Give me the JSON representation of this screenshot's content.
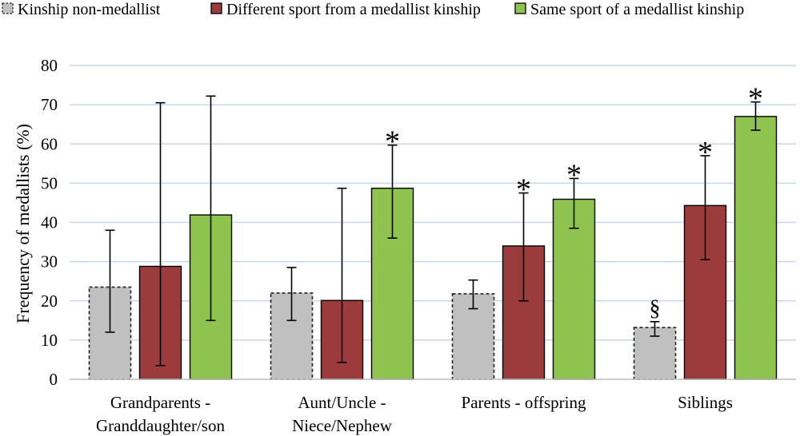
{
  "chart_data": {
    "type": "bar",
    "title": "",
    "xlabel": "",
    "ylabel": "Frequency of medallists (%)",
    "ylim": [
      0,
      80
    ],
    "yticks": [
      0,
      10,
      20,
      30,
      40,
      50,
      60,
      70,
      80
    ],
    "grid": true,
    "legend_position": "top",
    "categories": [
      [
        "Grandparents -",
        "Granddaughter/son"
      ],
      [
        "Aunt/Uncle -",
        "Niece/Nephew"
      ],
      [
        "Parents - offspring"
      ],
      [
        "Siblings"
      ]
    ],
    "series": [
      {
        "name": "Kinship non-medallist",
        "color": "#c0c0c0",
        "style": "dashed",
        "values": [
          23.5,
          22,
          21.8,
          13.2
        ],
        "err_low": [
          12,
          15,
          18,
          11
        ],
        "err_high": [
          38,
          28.5,
          25.3,
          14.7
        ],
        "markers": [
          "",
          "",
          "",
          "§"
        ]
      },
      {
        "name": "Different sport from a medallist kinship",
        "color": "#9b3b3b",
        "style": "solid",
        "values": [
          28.8,
          20.1,
          34,
          44.3
        ],
        "err_low": [
          3.5,
          4.3,
          20,
          30.5
        ],
        "err_high": [
          70.5,
          48.7,
          47.5,
          57
        ],
        "markers": [
          "",
          "",
          "*",
          "*"
        ]
      },
      {
        "name": "Same sport of a medallist kinship",
        "color": "#8fc34f",
        "style": "solid",
        "values": [
          41.9,
          48.7,
          45.9,
          67
        ],
        "err_low": [
          15,
          36,
          38.5,
          63.5
        ],
        "err_high": [
          72.2,
          59.7,
          51.2,
          70.7
        ],
        "markers": [
          "",
          "*",
          "*",
          "*"
        ]
      }
    ]
  }
}
